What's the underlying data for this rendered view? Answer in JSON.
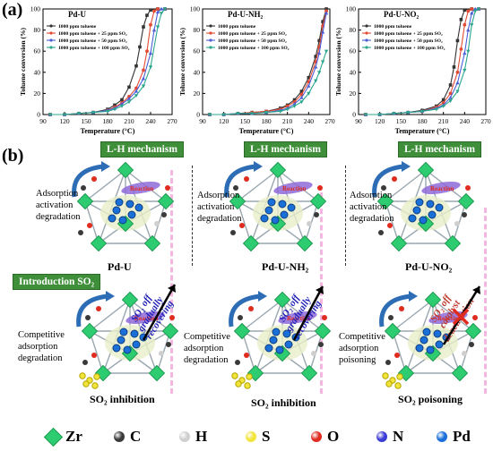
{
  "panel_a_label": "(a)",
  "panel_b_label": "(b)",
  "chart_data": [
    {
      "type": "line",
      "title": "Pd-U",
      "xlabel": "Temperature (°C)",
      "ylabel": "Toluene conversion (%)",
      "xlim": [
        90,
        270
      ],
      "ylim": [
        0,
        100
      ],
      "xticks": [
        90,
        120,
        150,
        180,
        210,
        240,
        270
      ],
      "yticks": [
        0,
        20,
        40,
        60,
        80,
        100
      ],
      "series": [
        {
          "name": "1000 ppm toluene",
          "color": "#333333",
          "marker": "square",
          "x": [
            100,
            120,
            140,
            160,
            180,
            190,
            200,
            210,
            220,
            225,
            230,
            235,
            240,
            250,
            260
          ],
          "y": [
            0,
            0,
            1,
            2,
            5,
            9,
            14,
            26,
            46,
            64,
            83,
            94,
            99,
            100,
            100
          ]
        },
        {
          "name": "1000 ppm toluene + 25 ppm SO₂",
          "color": "#e24a33",
          "marker": "circle",
          "x": [
            100,
            120,
            140,
            160,
            180,
            190,
            200,
            210,
            220,
            230,
            235,
            240,
            245,
            250,
            260
          ],
          "y": [
            0,
            0,
            1,
            2,
            4,
            7,
            11,
            17,
            25,
            42,
            60,
            85,
            98,
            100,
            100
          ]
        },
        {
          "name": "1000 ppm toluene + 50 ppm SO₂",
          "color": "#4c5fd6",
          "marker": "triangle",
          "x": [
            100,
            120,
            140,
            160,
            180,
            190,
            200,
            210,
            220,
            230,
            240,
            245,
            250,
            255,
            260
          ],
          "y": [
            0,
            0,
            1,
            2,
            4,
            6,
            10,
            15,
            22,
            34,
            58,
            80,
            97,
            100,
            100
          ]
        },
        {
          "name": "1000 ppm toluene + 100 ppm SO₂",
          "color": "#2ca58d",
          "marker": "tri-down",
          "x": [
            100,
            120,
            140,
            160,
            180,
            190,
            200,
            210,
            220,
            230,
            240,
            250,
            255,
            260
          ],
          "y": [
            0,
            0,
            1,
            2,
            3,
            5,
            8,
            12,
            18,
            27,
            45,
            83,
            96,
            100
          ]
        }
      ]
    },
    {
      "type": "line",
      "title": "Pd-U-NH₂",
      "xlabel": "Temperature (°C)",
      "ylabel": "Toluene conversion (%)",
      "xlim": [
        90,
        270
      ],
      "ylim": [
        0,
        100
      ],
      "xticks": [
        90,
        120,
        150,
        180,
        210,
        240,
        270
      ],
      "yticks": [
        0,
        20,
        40,
        60,
        80,
        100
      ],
      "series": [
        {
          "name": "1000 ppm toluene",
          "color": "#333333",
          "marker": "square",
          "x": [
            100,
            120,
            140,
            160,
            180,
            200,
            210,
            220,
            230,
            240,
            250,
            255,
            260,
            265
          ],
          "y": [
            0,
            0,
            1,
            2,
            3,
            6,
            9,
            14,
            22,
            35,
            55,
            70,
            88,
            100
          ]
        },
        {
          "name": "1000 ppm toluene + 25 ppm SO₂",
          "color": "#e24a33",
          "marker": "circle",
          "x": [
            100,
            120,
            140,
            160,
            180,
            200,
            210,
            220,
            230,
            240,
            250,
            255,
            260,
            265
          ],
          "y": [
            0,
            0,
            1,
            2,
            3,
            5,
            8,
            12,
            19,
            31,
            50,
            64,
            84,
            98
          ]
        },
        {
          "name": "1000 ppm toluene + 50 ppm SO₂",
          "color": "#4c5fd6",
          "marker": "triangle",
          "x": [
            100,
            120,
            140,
            160,
            180,
            200,
            210,
            220,
            230,
            240,
            250,
            255,
            260,
            265
          ],
          "y": [
            0,
            0,
            1,
            1,
            2,
            4,
            6,
            10,
            16,
            27,
            45,
            58,
            78,
            96
          ]
        },
        {
          "name": "1000 ppm toluene + 100 ppm SO₂",
          "color": "#2ca58d",
          "marker": "tri-down",
          "x": [
            100,
            120,
            140,
            160,
            180,
            200,
            210,
            220,
            230,
            240,
            250,
            255,
            260,
            265
          ],
          "y": [
            0,
            0,
            1,
            1,
            2,
            3,
            5,
            8,
            12,
            20,
            32,
            40,
            50,
            60
          ]
        }
      ]
    },
    {
      "type": "line",
      "title": "Pd-U-NO₂",
      "xlabel": "Temperature (°C)",
      "ylabel": "Toluene conversion (%)",
      "xlim": [
        90,
        270
      ],
      "ylim": [
        0,
        100
      ],
      "xticks": [
        90,
        120,
        150,
        180,
        210,
        240,
        270
      ],
      "yticks": [
        0,
        20,
        40,
        60,
        80,
        100
      ],
      "series": [
        {
          "name": "1000 ppm toluene",
          "color": "#333333",
          "marker": "square",
          "x": [
            100,
            120,
            140,
            160,
            180,
            200,
            210,
            220,
            225,
            230,
            235,
            240,
            250,
            260
          ],
          "y": [
            0,
            0,
            1,
            2,
            4,
            8,
            14,
            28,
            45,
            70,
            90,
            99,
            100,
            100
          ]
        },
        {
          "name": "1000 ppm toluene + 25 ppm SO₂",
          "color": "#e24a33",
          "marker": "circle",
          "x": [
            100,
            120,
            140,
            160,
            180,
            200,
            210,
            220,
            230,
            235,
            240,
            245,
            250,
            260
          ],
          "y": [
            0,
            0,
            1,
            2,
            3,
            7,
            11,
            20,
            40,
            62,
            85,
            98,
            100,
            100
          ]
        },
        {
          "name": "1000 ppm toluene + 50 ppm SO₂",
          "color": "#4c5fd6",
          "marker": "triangle",
          "x": [
            100,
            120,
            140,
            160,
            180,
            200,
            210,
            220,
            230,
            240,
            245,
            250,
            255,
            260
          ],
          "y": [
            0,
            0,
            1,
            2,
            3,
            6,
            9,
            16,
            30,
            58,
            80,
            96,
            100,
            100
          ]
        },
        {
          "name": "1000 ppm toluene + 100 ppm SO₂",
          "color": "#2ca58d",
          "marker": "tri-down",
          "x": [
            100,
            120,
            140,
            160,
            180,
            200,
            210,
            220,
            230,
            240,
            245,
            250,
            255,
            260
          ],
          "y": [
            0,
            0,
            1,
            2,
            3,
            5,
            8,
            13,
            22,
            42,
            60,
            85,
            98,
            100
          ]
        }
      ]
    }
  ],
  "panel_b": {
    "top": [
      {
        "tag": "L-H mechanism",
        "caption": "Adsorption\nactivation\ndegradation",
        "name": "Pd-U",
        "reaction": "Reaction"
      },
      {
        "tag": "L-H mechanism",
        "caption": "Adsorption\nactivation\ndegradation",
        "name": "Pd-U-NH₂",
        "reaction": "Reaction"
      },
      {
        "tag": "L-H mechanism",
        "caption": "Adsorption\nactivation\ndegradation",
        "name": "Pd-U-NO₂",
        "reaction": "Reaction"
      }
    ],
    "bottom": [
      {
        "tag": "Introduction SO₂",
        "caption": "Competitive\nadsorption\ndegradation",
        "name": "SO₂ inhibition",
        "arrow_text": "SO₂ off\ngradually\nrecovering",
        "reaction": "Reaction"
      },
      {
        "tag": "",
        "caption": "Competitive\nadsorption\ndegradation",
        "name": "SO₂ inhibition",
        "arrow_text": "SO₂ off\ngradually\nrecovering",
        "reaction": "Reaction"
      },
      {
        "tag": "",
        "caption": "Competitive\nadsorption\npoisoning",
        "name": "SO₂ poisoning",
        "arrow_text": "SO₂ off\ncatalyst\ndeactivation",
        "reaction": "Reaction"
      }
    ]
  },
  "legend": [
    {
      "label": "Zr",
      "color": "#2ecc71",
      "shape": "cube"
    },
    {
      "label": "C",
      "color": "#3a3a3a",
      "shape": "ball"
    },
    {
      "label": "H",
      "color": "#cfcfcf",
      "shape": "ball"
    },
    {
      "label": "S",
      "color": "#f1e43a",
      "shape": "ball"
    },
    {
      "label": "O",
      "color": "#e02b1f",
      "shape": "ball"
    },
    {
      "label": "N",
      "color": "#3b3bd6",
      "shape": "ball"
    },
    {
      "label": "Pd",
      "color": "#1a6fd8",
      "shape": "ball"
    }
  ]
}
